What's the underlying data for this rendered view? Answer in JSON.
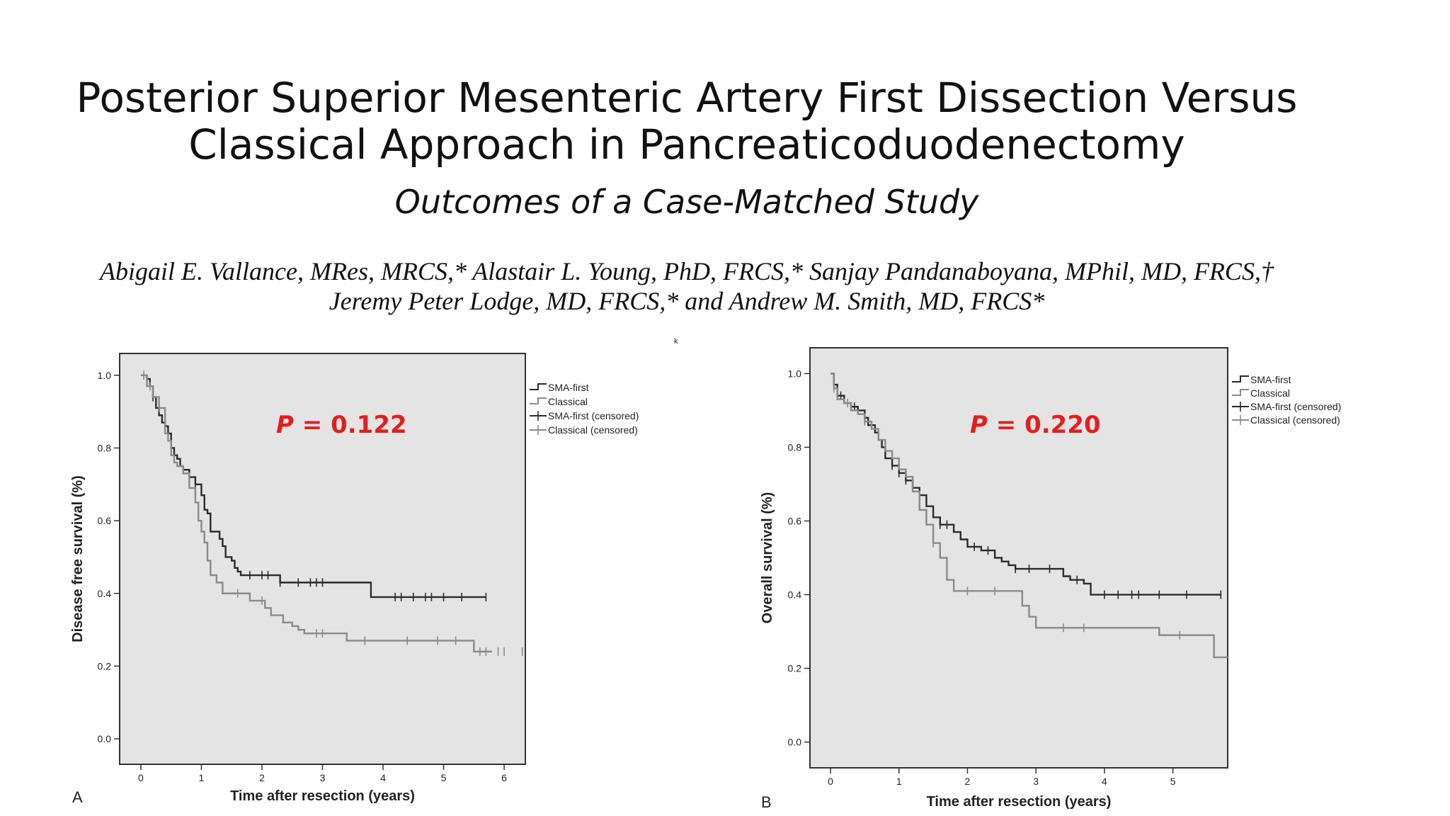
{
  "slide": {
    "title_line1": "Posterior Superior Mesenteric Artery First Dissection Versus",
    "title_line2": "Classical Approach in Pancreaticoduodenectomy",
    "subtitle": "Outcomes of a Case-Matched Study",
    "authors_line1": "Abigail E. Vallance, MRes, MRCS,* Alastair L. Young, PhD, FRCS,* Sanjay Pandanaboyana, MPhil, MD, FRCS,†",
    "authors_line2": "Jeremy Peter Lodge, MD, FRCS,* and Andrew M. Smith, MD, FRCS*",
    "stray_mark": "ᵏ"
  },
  "colors": {
    "sma_first": "#2b2b2b",
    "classical": "#8a8a8a",
    "plot_bg": "#e4e4e4",
    "p_value": "#e02020"
  },
  "chart_data": [
    {
      "type": "line",
      "panel_label": "A",
      "xlabel": "Time after resection (years)",
      "ylabel": "Disease free survival (%)",
      "xlim": [
        -0.35,
        6.35
      ],
      "ylim": [
        -0.07,
        1.06
      ],
      "xticks": [
        "0",
        "1",
        "2",
        "3",
        "4",
        "5",
        "6"
      ],
      "yticks": [
        "0.0",
        "0.2",
        "0.4",
        "0.6",
        "0.8",
        "1.0"
      ],
      "annotation": {
        "p_symbol": "P",
        "p_rest": " =  0.122"
      },
      "legend": [
        "SMA-first",
        "Classical",
        "SMA-first (censored)",
        "Classical (censored)"
      ],
      "legend_position": "outside-right",
      "grid": false,
      "series": [
        {
          "name": "SMA-first",
          "x": [
            0,
            0.1,
            0.15,
            0.2,
            0.25,
            0.3,
            0.35,
            0.4,
            0.45,
            0.5,
            0.55,
            0.6,
            0.65,
            0.7,
            0.8,
            0.9,
            1.0,
            1.05,
            1.1,
            1.15,
            1.3,
            1.35,
            1.4,
            1.5,
            1.55,
            1.6,
            1.65,
            1.7,
            2.3,
            3.8,
            5.7
          ],
          "y": [
            1.0,
            0.99,
            0.97,
            0.94,
            0.91,
            0.89,
            0.87,
            0.86,
            0.84,
            0.8,
            0.78,
            0.77,
            0.75,
            0.74,
            0.72,
            0.7,
            0.67,
            0.63,
            0.62,
            0.57,
            0.55,
            0.53,
            0.5,
            0.49,
            0.47,
            0.46,
            0.45,
            0.45,
            0.43,
            0.39,
            0.39
          ],
          "censored_x": [
            0.05,
            0.2,
            0.4,
            0.9,
            1.8,
            2.0,
            2.1,
            2.3,
            2.6,
            2.8,
            2.9,
            3.0,
            4.2,
            4.3,
            4.5,
            4.7,
            4.8,
            5.0,
            5.3,
            5.7
          ]
        },
        {
          "name": "Classical",
          "x": [
            0,
            0.1,
            0.2,
            0.3,
            0.4,
            0.45,
            0.5,
            0.55,
            0.6,
            0.7,
            0.8,
            0.9,
            0.95,
            1.0,
            1.05,
            1.1,
            1.15,
            1.25,
            1.35,
            1.8,
            2.05,
            2.15,
            2.35,
            2.5,
            2.6,
            2.7,
            3.4,
            5.5,
            5.8
          ],
          "y": [
            1.0,
            0.97,
            0.94,
            0.91,
            0.84,
            0.82,
            0.78,
            0.76,
            0.75,
            0.73,
            0.69,
            0.65,
            0.6,
            0.57,
            0.54,
            0.49,
            0.45,
            0.43,
            0.4,
            0.38,
            0.36,
            0.34,
            0.32,
            0.31,
            0.3,
            0.29,
            0.27,
            0.24,
            0.24
          ],
          "censored_x": [
            0.05,
            0.15,
            0.3,
            1.6,
            2.0,
            2.9,
            3.0,
            3.7,
            4.4,
            4.9,
            5.2,
            5.6,
            5.7,
            5.9,
            6.0,
            6.3
          ]
        }
      ]
    },
    {
      "type": "line",
      "panel_label": "B",
      "xlabel": "Time after resection (years)",
      "ylabel": "Overall survival (%)",
      "xlim": [
        -0.3,
        5.8
      ],
      "ylim": [
        -0.07,
        1.07
      ],
      "xticks": [
        "0",
        "1",
        "2",
        "3",
        "4",
        "5"
      ],
      "yticks": [
        "0.0",
        "0.2",
        "0.4",
        "0.6",
        "0.8",
        "1.0"
      ],
      "annotation": {
        "p_symbol": "P",
        "p_rest": " =  0.220"
      },
      "legend": [
        "SMA-first",
        "Classical",
        "SMA-first (censored)",
        "Classical (censored)"
      ],
      "legend_position": "outside-right",
      "grid": false,
      "series": [
        {
          "name": "SMA-first",
          "x": [
            0,
            0.05,
            0.1,
            0.2,
            0.3,
            0.4,
            0.5,
            0.55,
            0.65,
            0.7,
            0.75,
            0.8,
            0.9,
            1.0,
            1.1,
            1.2,
            1.3,
            1.4,
            1.5,
            1.6,
            1.8,
            1.9,
            2.0,
            2.2,
            2.4,
            2.5,
            2.6,
            2.7,
            3.0,
            3.4,
            3.5,
            3.7,
            3.8,
            5.7
          ],
          "y": [
            1.0,
            0.97,
            0.94,
            0.92,
            0.91,
            0.9,
            0.88,
            0.86,
            0.84,
            0.82,
            0.8,
            0.77,
            0.75,
            0.73,
            0.71,
            0.69,
            0.67,
            0.64,
            0.61,
            0.59,
            0.57,
            0.55,
            0.53,
            0.52,
            0.5,
            0.49,
            0.48,
            0.47,
            0.47,
            0.45,
            0.44,
            0.43,
            0.4,
            0.4
          ],
          "censored_x": [
            0.05,
            0.15,
            0.35,
            0.9,
            1.0,
            1.1,
            1.6,
            1.7,
            2.1,
            2.3,
            2.7,
            2.9,
            3.2,
            3.6,
            4.0,
            4.2,
            4.4,
            4.5,
            4.8,
            5.2,
            5.7
          ]
        },
        {
          "name": "Classical",
          "x": [
            0,
            0.05,
            0.1,
            0.2,
            0.3,
            0.4,
            0.5,
            0.6,
            0.7,
            0.8,
            0.9,
            1.0,
            1.1,
            1.2,
            1.3,
            1.4,
            1.5,
            1.6,
            1.7,
            1.8,
            2.3,
            2.8,
            2.9,
            3.0,
            4.8,
            5.6,
            5.8
          ],
          "y": [
            1.0,
            0.96,
            0.93,
            0.92,
            0.9,
            0.89,
            0.87,
            0.85,
            0.82,
            0.79,
            0.77,
            0.74,
            0.72,
            0.68,
            0.63,
            0.59,
            0.54,
            0.5,
            0.44,
            0.41,
            0.41,
            0.37,
            0.34,
            0.31,
            0.29,
            0.23,
            0.23
          ],
          "censored_x": [
            0.05,
            0.25,
            0.5,
            1.5,
            2.0,
            2.4,
            3.4,
            3.7,
            5.1
          ]
        }
      ]
    }
  ]
}
